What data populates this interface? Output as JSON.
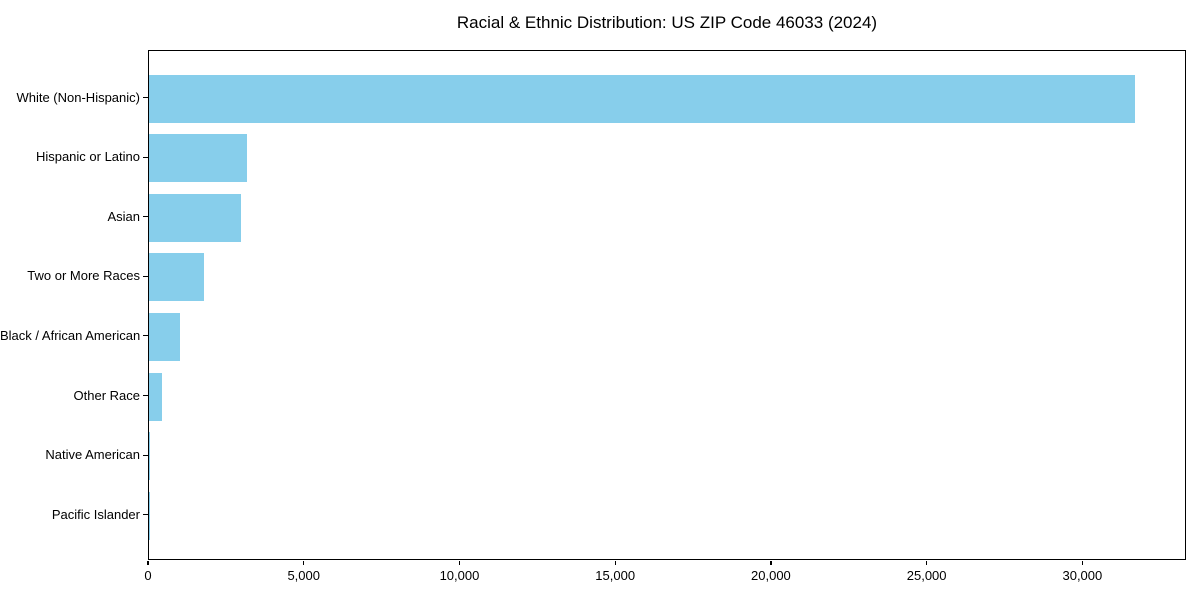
{
  "chart_data": {
    "type": "bar",
    "orientation": "horizontal",
    "title": "Racial & Ethnic Distribution: US ZIP Code 46033 (2024)",
    "xlabel": "",
    "ylabel": "",
    "categories": [
      "White (Non-Hispanic)",
      "Hispanic or Latino",
      "Asian",
      "Two or More Races",
      "Black / African American",
      "Other Race",
      "Native American",
      "Pacific Islander"
    ],
    "values": [
      31650,
      3150,
      2950,
      1750,
      1000,
      430,
      30,
      10
    ],
    "x_ticks": [
      0,
      5000,
      10000,
      15000,
      20000,
      25000,
      30000
    ],
    "x_tick_labels": [
      "0",
      "5,000",
      "10,000",
      "15,000",
      "20,000",
      "25,000",
      "30,000"
    ],
    "xlim": [
      0,
      33250
    ],
    "grid": false,
    "legend": false,
    "bar_color": "#87CEEB",
    "spine_color": "#000000",
    "text_color": "#000000",
    "background_color": "#ffffff"
  }
}
